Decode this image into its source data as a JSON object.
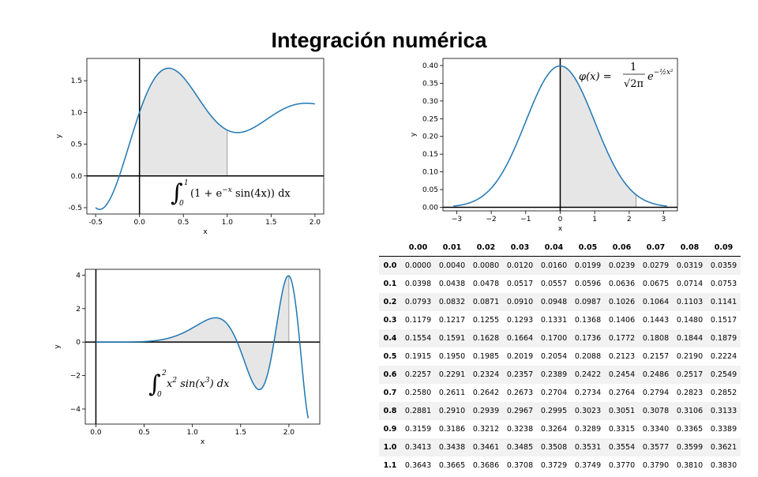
{
  "title": "Integración numérica",
  "chart_data": [
    {
      "type": "line",
      "id": "plot1",
      "function": "1 + exp(-x) * sin(4x)",
      "x_range": [
        -0.5,
        2.0
      ],
      "xlim": [
        -0.6,
        2.1
      ],
      "ylim": [
        -0.6,
        1.85
      ],
      "shaded_interval": [
        0,
        1
      ],
      "xticks": [
        "-0.5",
        "0.0",
        "0.5",
        "1.0",
        "1.5",
        "2.0"
      ],
      "xtick_values": [
        -0.5,
        0,
        0.5,
        1,
        1.5,
        2
      ],
      "yticks": [
        "-0.5",
        "0.0",
        "0.5",
        "1.0",
        "1.5"
      ],
      "ytick_values": [
        -0.5,
        0,
        0.5,
        1,
        1.5
      ],
      "xlabel": "x",
      "ylabel": "y",
      "annotation": {
        "lower": "0",
        "upper": "1",
        "body": "(1 + e",
        "exp": "−x",
        "rest": " sin(4x))  dx"
      }
    },
    {
      "type": "line",
      "id": "plot2",
      "function": "exp(-x^2/2) / sqrt(2pi)",
      "x_range": [
        -3.1,
        3.1
      ],
      "xlim": [
        -3.4,
        3.4
      ],
      "ylim": [
        -0.01,
        0.42
      ],
      "shaded_interval": [
        0,
        2.2
      ],
      "xticks": [
        "−3",
        "−2",
        "−1",
        "0",
        "1",
        "2",
        "3"
      ],
      "xtick_values": [
        -3,
        -2,
        -1,
        0,
        1,
        2,
        3
      ],
      "yticks": [
        "0.00",
        "0.05",
        "0.10",
        "0.15",
        "0.20",
        "0.25",
        "0.30",
        "0.35",
        "0.40"
      ],
      "ytick_values": [
        0,
        0.05,
        0.1,
        0.15,
        0.2,
        0.25,
        0.3,
        0.35,
        0.4
      ],
      "xlabel": "x",
      "ylabel": "y",
      "annotation": {
        "lhs": "φ(x) = ",
        "num": "1",
        "den": "√2π",
        "base": "e",
        "exp": "−½x²"
      }
    },
    {
      "type": "line",
      "id": "plot3",
      "function": "x^2 * sin(x^3)",
      "x_range": [
        0,
        2.2
      ],
      "xlim": [
        -0.11,
        2.32
      ],
      "ylim": [
        -4.9,
        4.35
      ],
      "shaded_interval": [
        0,
        2
      ],
      "xticks": [
        "0.0",
        "0.5",
        "1.0",
        "1.5",
        "2.0"
      ],
      "xtick_values": [
        0,
        0.5,
        1,
        1.5,
        2
      ],
      "yticks": [
        "−4",
        "−2",
        "0",
        "2",
        "4"
      ],
      "ytick_values": [
        -4,
        -2,
        0,
        2,
        4
      ],
      "xlabel": "x",
      "ylabel": "y",
      "annotation": {
        "lower": "0",
        "upper": "2",
        "body": "x",
        "sq": "2",
        "mid": " sin(x",
        "cube": "3",
        "rest": ") dx"
      }
    }
  ],
  "colors": {
    "line": "#1f77b4",
    "fill": "#e6e6e6"
  },
  "table": {
    "columns": [
      "",
      "0.00",
      "0.01",
      "0.02",
      "0.03",
      "0.04",
      "0.05",
      "0.06",
      "0.07",
      "0.08",
      "0.09"
    ],
    "rows": [
      [
        "0.0",
        "0.0000",
        "0.0040",
        "0.0080",
        "0.0120",
        "0.0160",
        "0.0199",
        "0.0239",
        "0.0279",
        "0.0319",
        "0.0359"
      ],
      [
        "0.1",
        "0.0398",
        "0.0438",
        "0.0478",
        "0.0517",
        "0.0557",
        "0.0596",
        "0.0636",
        "0.0675",
        "0.0714",
        "0.0753"
      ],
      [
        "0.2",
        "0.0793",
        "0.0832",
        "0.0871",
        "0.0910",
        "0.0948",
        "0.0987",
        "0.1026",
        "0.1064",
        "0.1103",
        "0.1141"
      ],
      [
        "0.3",
        "0.1179",
        "0.1217",
        "0.1255",
        "0.1293",
        "0.1331",
        "0.1368",
        "0.1406",
        "0.1443",
        "0.1480",
        "0.1517"
      ],
      [
        "0.4",
        "0.1554",
        "0.1591",
        "0.1628",
        "0.1664",
        "0.1700",
        "0.1736",
        "0.1772",
        "0.1808",
        "0.1844",
        "0.1879"
      ],
      [
        "0.5",
        "0.1915",
        "0.1950",
        "0.1985",
        "0.2019",
        "0.2054",
        "0.2088",
        "0.2123",
        "0.2157",
        "0.2190",
        "0.2224"
      ],
      [
        "0.6",
        "0.2257",
        "0.2291",
        "0.2324",
        "0.2357",
        "0.2389",
        "0.2422",
        "0.2454",
        "0.2486",
        "0.2517",
        "0.2549"
      ],
      [
        "0.7",
        "0.2580",
        "0.2611",
        "0.2642",
        "0.2673",
        "0.2704",
        "0.2734",
        "0.2764",
        "0.2794",
        "0.2823",
        "0.2852"
      ],
      [
        "0.8",
        "0.2881",
        "0.2910",
        "0.2939",
        "0.2967",
        "0.2995",
        "0.3023",
        "0.3051",
        "0.3078",
        "0.3106",
        "0.3133"
      ],
      [
        "0.9",
        "0.3159",
        "0.3186",
        "0.3212",
        "0.3238",
        "0.3264",
        "0.3289",
        "0.3315",
        "0.3340",
        "0.3365",
        "0.3389"
      ],
      [
        "1.0",
        "0.3413",
        "0.3438",
        "0.3461",
        "0.3485",
        "0.3508",
        "0.3531",
        "0.3554",
        "0.3577",
        "0.3599",
        "0.3621"
      ],
      [
        "1.1",
        "0.3643",
        "0.3665",
        "0.3686",
        "0.3708",
        "0.3729",
        "0.3749",
        "0.3770",
        "0.3790",
        "0.3810",
        "0.3830"
      ]
    ]
  }
}
